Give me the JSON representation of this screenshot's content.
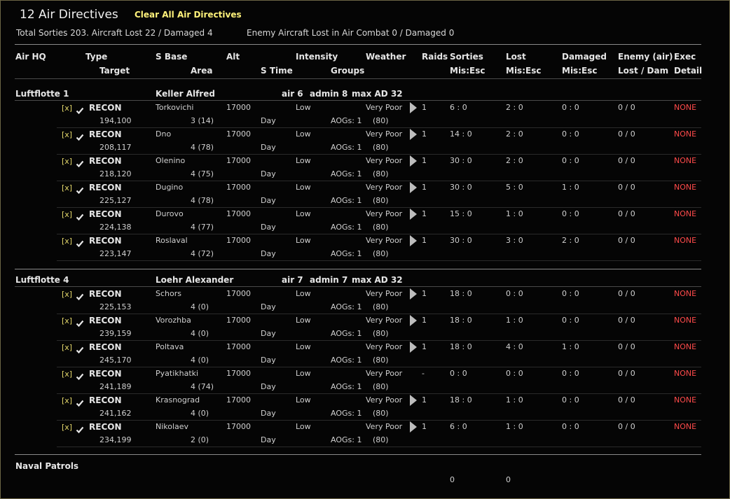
{
  "window": {
    "title": "12 Air Directives",
    "clear_button": "Clear All Air Directives",
    "summary_left": "Total Sorties 203. Aircraft Lost 22 / Damaged 4",
    "summary_right": "Enemy Aircraft Lost in Air Combat 0 / Damaged 0"
  },
  "header": {
    "row1": [
      "Air HQ",
      "Type",
      "S Base",
      "Alt",
      "Intensity",
      "Weather",
      "Raids",
      "Sorties",
      "Lost",
      "Damaged",
      "Enemy (air)",
      "Exec"
    ],
    "row2": [
      "Target",
      "Area",
      "S Time",
      "Groups",
      "Mis:Esc",
      "Mis:Esc",
      "Mis:Esc",
      "Lost / Dam",
      "Detail"
    ]
  },
  "groups": [
    {
      "hq": "Luftflotte 1",
      "commander": "Keller Alfred",
      "air": "air 6",
      "admin": "admin 8",
      "max_ad": "max AD 32",
      "rows": [
        {
          "x": "[x]",
          "type": "RECON",
          "base": "Torkovichi",
          "alt": "17000",
          "intensity": "Low",
          "weather": "Very Poor",
          "raids": "1",
          "sorties": "6 : 0",
          "lost": "2 : 0",
          "damaged": "0 : 0",
          "enemy": "0 / 0",
          "exec": "NONE",
          "target": "194,100",
          "area": "3 (14)",
          "stime": "Day",
          "groups": "AOGs: 1",
          "w2": "(80)",
          "has_arrow": true
        },
        {
          "x": "[x]",
          "type": "RECON",
          "base": "Dno",
          "alt": "17000",
          "intensity": "Low",
          "weather": "Very Poor",
          "raids": "1",
          "sorties": "14 : 0",
          "lost": "2 : 0",
          "damaged": "0 : 0",
          "enemy": "0 / 0",
          "exec": "NONE",
          "target": "208,117",
          "area": "4 (78)",
          "stime": "Day",
          "groups": "AOGs: 1",
          "w2": "(80)",
          "has_arrow": true
        },
        {
          "x": "[x]",
          "type": "RECON",
          "base": "Olenino",
          "alt": "17000",
          "intensity": "Low",
          "weather": "Very Poor",
          "raids": "1",
          "sorties": "30 : 0",
          "lost": "2 : 0",
          "damaged": "0 : 0",
          "enemy": "0 / 0",
          "exec": "NONE",
          "target": "218,120",
          "area": "4 (75)",
          "stime": "Day",
          "groups": "AOGs: 1",
          "w2": "(80)",
          "has_arrow": true
        },
        {
          "x": "[x]",
          "type": "RECON",
          "base": "Dugino",
          "alt": "17000",
          "intensity": "Low",
          "weather": "Very Poor",
          "raids": "1",
          "sorties": "30 : 0",
          "lost": "5 : 0",
          "damaged": "1 : 0",
          "enemy": "0 / 0",
          "exec": "NONE",
          "target": "225,127",
          "area": "4 (78)",
          "stime": "Day",
          "groups": "AOGs: 1",
          "w2": "(80)",
          "has_arrow": true
        },
        {
          "x": "[x]",
          "type": "RECON",
          "base": "Durovo",
          "alt": "17000",
          "intensity": "Low",
          "weather": "Very Poor",
          "raids": "1",
          "sorties": "15 : 0",
          "lost": "1 : 0",
          "damaged": "0 : 0",
          "enemy": "0 / 0",
          "exec": "NONE",
          "target": "224,138",
          "area": "4 (77)",
          "stime": "Day",
          "groups": "AOGs: 1",
          "w2": "(80)",
          "has_arrow": true
        },
        {
          "x": "[x]",
          "type": "RECON",
          "base": "Roslaval",
          "alt": "17000",
          "intensity": "Low",
          "weather": "Very Poor",
          "raids": "1",
          "sorties": "30 : 0",
          "lost": "3 : 0",
          "damaged": "2 : 0",
          "enemy": "0 / 0",
          "exec": "NONE",
          "target": "223,147",
          "area": "4 (72)",
          "stime": "Day",
          "groups": "AOGs: 1",
          "w2": "(80)",
          "has_arrow": true
        }
      ]
    },
    {
      "hq": "Luftflotte 4",
      "commander": "Loehr Alexander",
      "air": "air 7",
      "admin": "admin 7",
      "max_ad": "max AD 32",
      "rows": [
        {
          "x": "[x]",
          "type": "RECON",
          "base": "Schors",
          "alt": "17000",
          "intensity": "Low",
          "weather": "Very Poor",
          "raids": "1",
          "sorties": "18 : 0",
          "lost": "0 : 0",
          "damaged": "0 : 0",
          "enemy": "0 / 0",
          "exec": "NONE",
          "target": "225,153",
          "area": "4 (0)",
          "stime": "Day",
          "groups": "AOGs: 1",
          "w2": "(80)",
          "has_arrow": true
        },
        {
          "x": "[x]",
          "type": "RECON",
          "base": "Vorozhba",
          "alt": "17000",
          "intensity": "Low",
          "weather": "Very Poor",
          "raids": "1",
          "sorties": "18 : 0",
          "lost": "1 : 0",
          "damaged": "0 : 0",
          "enemy": "0 / 0",
          "exec": "NONE",
          "target": "239,159",
          "area": "4 (0)",
          "stime": "Day",
          "groups": "AOGs: 1",
          "w2": "(80)",
          "has_arrow": true
        },
        {
          "x": "[x]",
          "type": "RECON",
          "base": "Poltava",
          "alt": "17000",
          "intensity": "Low",
          "weather": "Very Poor",
          "raids": "1",
          "sorties": "18 : 0",
          "lost": "4 : 0",
          "damaged": "1 : 0",
          "enemy": "0 / 0",
          "exec": "NONE",
          "target": "245,170",
          "area": "4 (0)",
          "stime": "Day",
          "groups": "AOGs: 1",
          "w2": "(80)",
          "has_arrow": true
        },
        {
          "x": "[x]",
          "type": "RECON",
          "base": "Pyatikhatki",
          "alt": "17000",
          "intensity": "Low",
          "weather": "Very Poor",
          "raids": "-",
          "sorties": "0 : 0",
          "lost": "0 : 0",
          "damaged": "0 : 0",
          "enemy": "0 / 0",
          "exec": "NONE",
          "target": "241,189",
          "area": "4 (74)",
          "stime": "Day",
          "groups": "AOGs: 1",
          "w2": "(80)",
          "has_arrow": false
        },
        {
          "x": "[x]",
          "type": "RECON",
          "base": "Krasnograd",
          "alt": "17000",
          "intensity": "Low",
          "weather": "Very Poor",
          "raids": "1",
          "sorties": "18 : 0",
          "lost": "1 : 0",
          "damaged": "0 : 0",
          "enemy": "0 / 0",
          "exec": "NONE",
          "target": "241,162",
          "area": "4 (0)",
          "stime": "Day",
          "groups": "AOGs: 1",
          "w2": "(80)",
          "has_arrow": true
        },
        {
          "x": "[x]",
          "type": "RECON",
          "base": "Nikolaev",
          "alt": "17000",
          "intensity": "Low",
          "weather": "Very Poor",
          "raids": "1",
          "sorties": "6 : 0",
          "lost": "1 : 0",
          "damaged": "0 : 0",
          "enemy": "0 / 0",
          "exec": "NONE",
          "target": "234,199",
          "area": "2 (0)",
          "stime": "Day",
          "groups": "AOGs: 1",
          "w2": "(80)",
          "has_arrow": true
        }
      ]
    }
  ],
  "naval": {
    "label": "Naval Patrols",
    "sorties": "0",
    "lost": "0"
  },
  "icons": {
    "check": "checkmark-icon",
    "raid": "play-arrow-icon"
  }
}
